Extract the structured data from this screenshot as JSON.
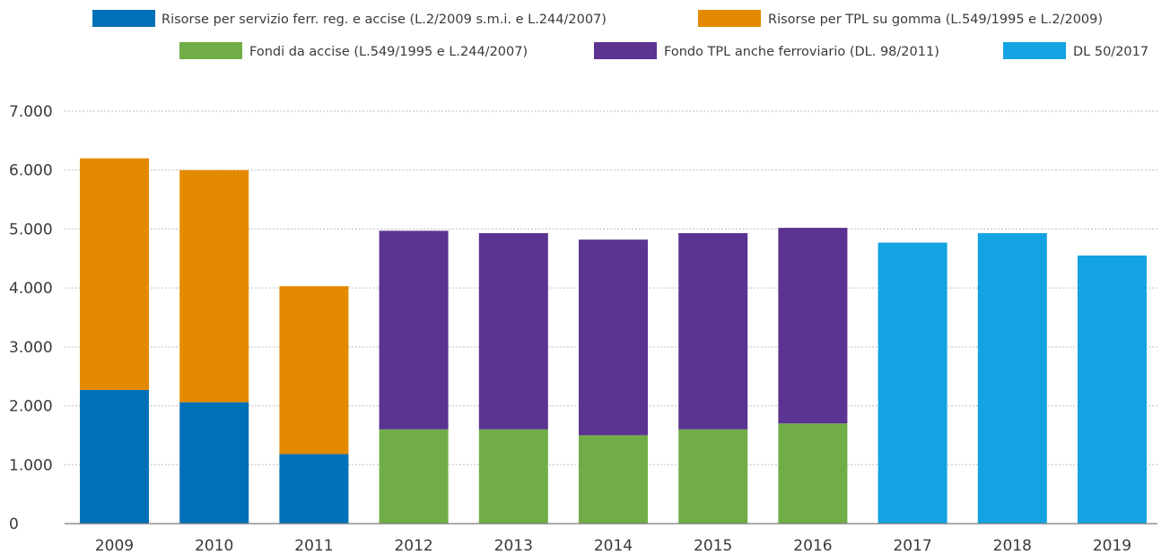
{
  "chart_data": {
    "type": "bar",
    "stacked": true,
    "categories": [
      "2009",
      "2010",
      "2011",
      "2012",
      "2013",
      "2014",
      "2015",
      "2016",
      "2017",
      "2018",
      "2019"
    ],
    "ylim": [
      0,
      7000
    ],
    "yticks": [
      0,
      1000,
      2000,
      3000,
      4000,
      5000,
      6000,
      7000
    ],
    "ytick_labels": [
      "0",
      "1.000",
      "2.000",
      "3.000",
      "4.000",
      "5.000",
      "6.000",
      "7.000"
    ],
    "grid": true,
    "legend_position": "top",
    "series": [
      {
        "name": "Risorse per servizio ferr. reg. e accise (L.2/2009 s.m.i. e L.244/2007)",
        "color": "#0070b8",
        "values": [
          2270,
          2060,
          1180,
          0,
          0,
          0,
          0,
          0,
          0,
          0,
          0
        ]
      },
      {
        "name": "Risorse per TPL su gomma (L.549/1995 e L.2/2009)",
        "color": "#e48a00",
        "values": [
          3930,
          3940,
          2850,
          0,
          0,
          0,
          0,
          0,
          0,
          0,
          0
        ]
      },
      {
        "name": "Fondi da accise (L.549/1995 e L.244/2007)",
        "color": "#70ad47",
        "values": [
          0,
          0,
          0,
          1600,
          1600,
          1500,
          1600,
          1700,
          0,
          0,
          0
        ]
      },
      {
        "name": "Fondo TPL anche ferroviario (DL. 98/2011)",
        "color": "#5b3391",
        "values": [
          0,
          0,
          0,
          3370,
          3330,
          3320,
          3330,
          3320,
          0,
          0,
          0
        ]
      },
      {
        "name": "DL 50/2017",
        "color": "#13a3e2",
        "values": [
          0,
          0,
          0,
          0,
          0,
          0,
          0,
          0,
          4770,
          4930,
          4550
        ]
      }
    ]
  }
}
